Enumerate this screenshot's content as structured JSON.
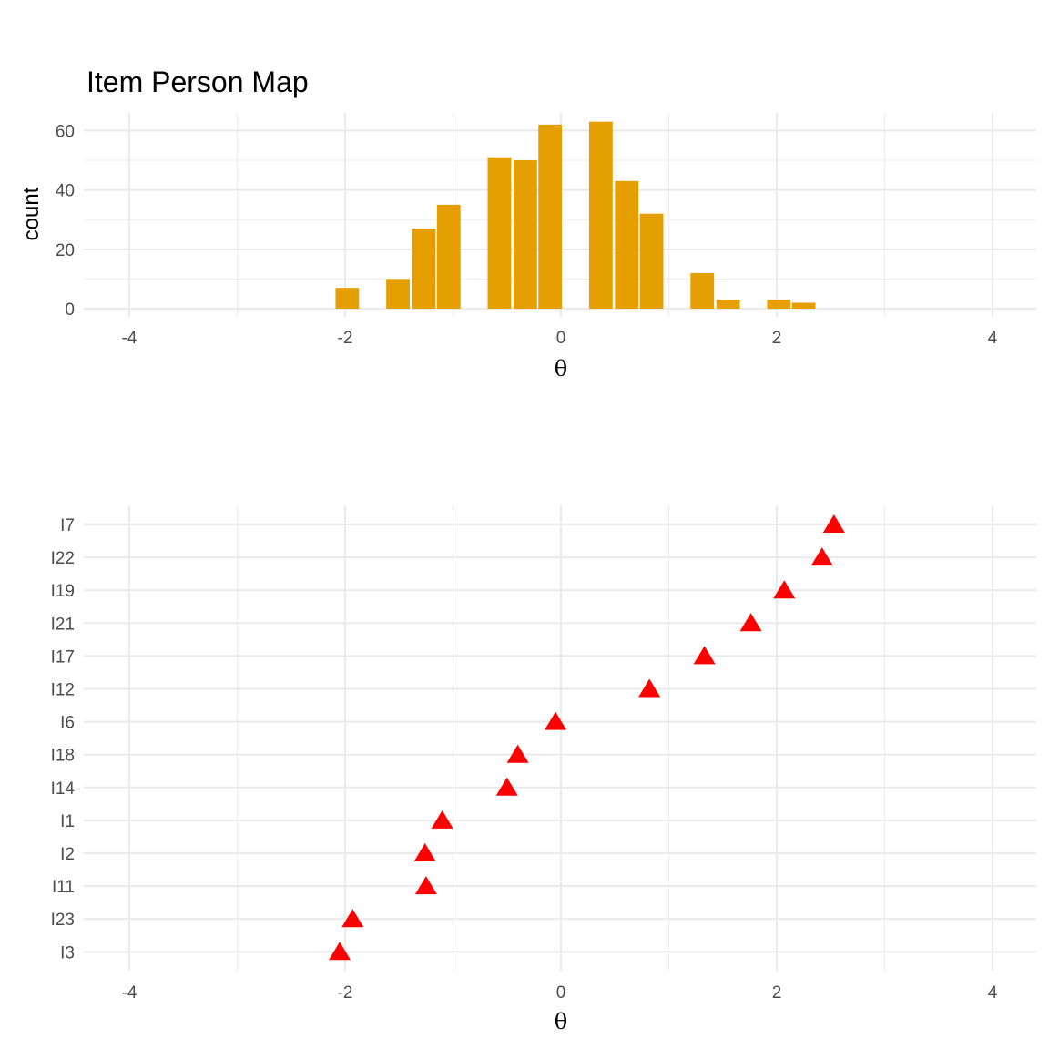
{
  "chart_data": [
    {
      "type": "bar",
      "title": "Item Person Map",
      "xlabel": "θ",
      "ylabel": "count",
      "xlim": [
        -4.2,
        4.2
      ],
      "ylim": [
        0,
        65
      ],
      "x_ticks": [
        "-4",
        "-2",
        "0",
        "2",
        "4"
      ],
      "y_ticks": [
        "0",
        "20",
        "40",
        "60"
      ],
      "grid": true,
      "bar_color": "#E69F00",
      "bin_width": 0.235,
      "bins": [
        {
          "x": -1.98,
          "count": 7
        },
        {
          "x": -1.51,
          "count": 10
        },
        {
          "x": -1.27,
          "count": 27
        },
        {
          "x": -1.04,
          "count": 35
        },
        {
          "x": -0.57,
          "count": 51
        },
        {
          "x": -0.33,
          "count": 50
        },
        {
          "x": -0.1,
          "count": 62
        },
        {
          "x": 0.37,
          "count": 63
        },
        {
          "x": 0.61,
          "count": 43
        },
        {
          "x": 0.84,
          "count": 32
        },
        {
          "x": 1.31,
          "count": 12
        },
        {
          "x": 1.55,
          "count": 3
        },
        {
          "x": 2.02,
          "count": 3
        },
        {
          "x": 2.25,
          "count": 2
        }
      ]
    },
    {
      "type": "scatter",
      "xlabel": "θ",
      "xlim": [
        -4.2,
        4.2
      ],
      "x_ticks": [
        "-4",
        "-2",
        "0",
        "2",
        "4"
      ],
      "grid": true,
      "marker": "triangle",
      "marker_color": "#FF0000",
      "categories": [
        "I7",
        "I22",
        "I19",
        "I21",
        "I17",
        "I12",
        "I6",
        "I18",
        "I14",
        "I1",
        "I2",
        "I11",
        "I23",
        "I3"
      ],
      "values": [
        2.53,
        2.42,
        2.07,
        1.76,
        1.33,
        0.82,
        -0.05,
        -0.4,
        -0.5,
        -1.1,
        -1.26,
        -1.25,
        -1.93,
        -2.05
      ]
    }
  ]
}
